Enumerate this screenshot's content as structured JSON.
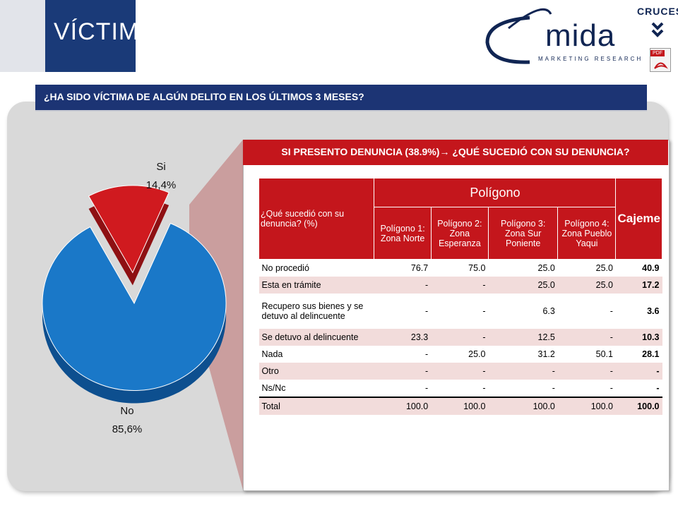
{
  "header": {
    "title": "VÍCTIMAS",
    "brand": "mida",
    "brand_sub": "MARKETING RESEARCH",
    "cruces_label": "CRUCES",
    "pdf_label": "PDF"
  },
  "question": "¿HA SIDO VÍCTIMA DE ALGÚN DELITO EN LOS ÚLTIMOS 3 MESES?",
  "pie": {
    "si_label": "Si",
    "si_value": "14,4%",
    "no_label": "No",
    "no_value": "85,6%"
  },
  "chart_data": {
    "type": "pie",
    "categories": [
      "Si",
      "No"
    ],
    "values": [
      14.4,
      85.6
    ],
    "colors": [
      "#d01a1f",
      "#1a78c8"
    ]
  },
  "table_title": "SI PRESENTO DENUNCIA (38.9%)",
  "table_title_rest": " ¿QUÉ SUCEDIÓ CON SU DENUNCIA?",
  "table": {
    "corner": "¿Qué sucedió con su denuncia? (%)",
    "group_header": "Polígono",
    "total_header": "Cajeme",
    "columns": [
      "Polígono 1: Zona Norte",
      "Polígono 2: Zona Esperanza",
      "Polígono 3: Zona Sur Poniente",
      "Polígono 4: Zona Pueblo Yaqui"
    ],
    "rows": [
      {
        "label": "No procedió",
        "values": [
          "76.7",
          "75.0",
          "25.0",
          "25.0"
        ],
        "total": "40.9"
      },
      {
        "label": "Esta en trámite",
        "values": [
          "-",
          "-",
          "25.0",
          "25.0"
        ],
        "total": "17.2"
      },
      {
        "label": "Recupero sus bienes y se detuvo al delincuente",
        "values": [
          "-",
          "-",
          "6.3",
          "-"
        ],
        "total": "3.6"
      },
      {
        "label": "Se detuvo al delincuente",
        "values": [
          "23.3",
          "-",
          "12.5",
          "-"
        ],
        "total": "10.3"
      },
      {
        "label": "Nada",
        "values": [
          "-",
          "25.0",
          "31.2",
          "50.1"
        ],
        "total": "28.1"
      },
      {
        "label": "Otro",
        "values": [
          "-",
          "-",
          "-",
          "-"
        ],
        "total": "-"
      },
      {
        "label": "Ns/Nc",
        "values": [
          "-",
          "-",
          "-",
          "-"
        ],
        "total": "-"
      }
    ],
    "total_row": {
      "label": "Total",
      "values": [
        "100.0",
        "100.0",
        "100.0",
        "100.0"
      ],
      "total": "100.0"
    }
  }
}
